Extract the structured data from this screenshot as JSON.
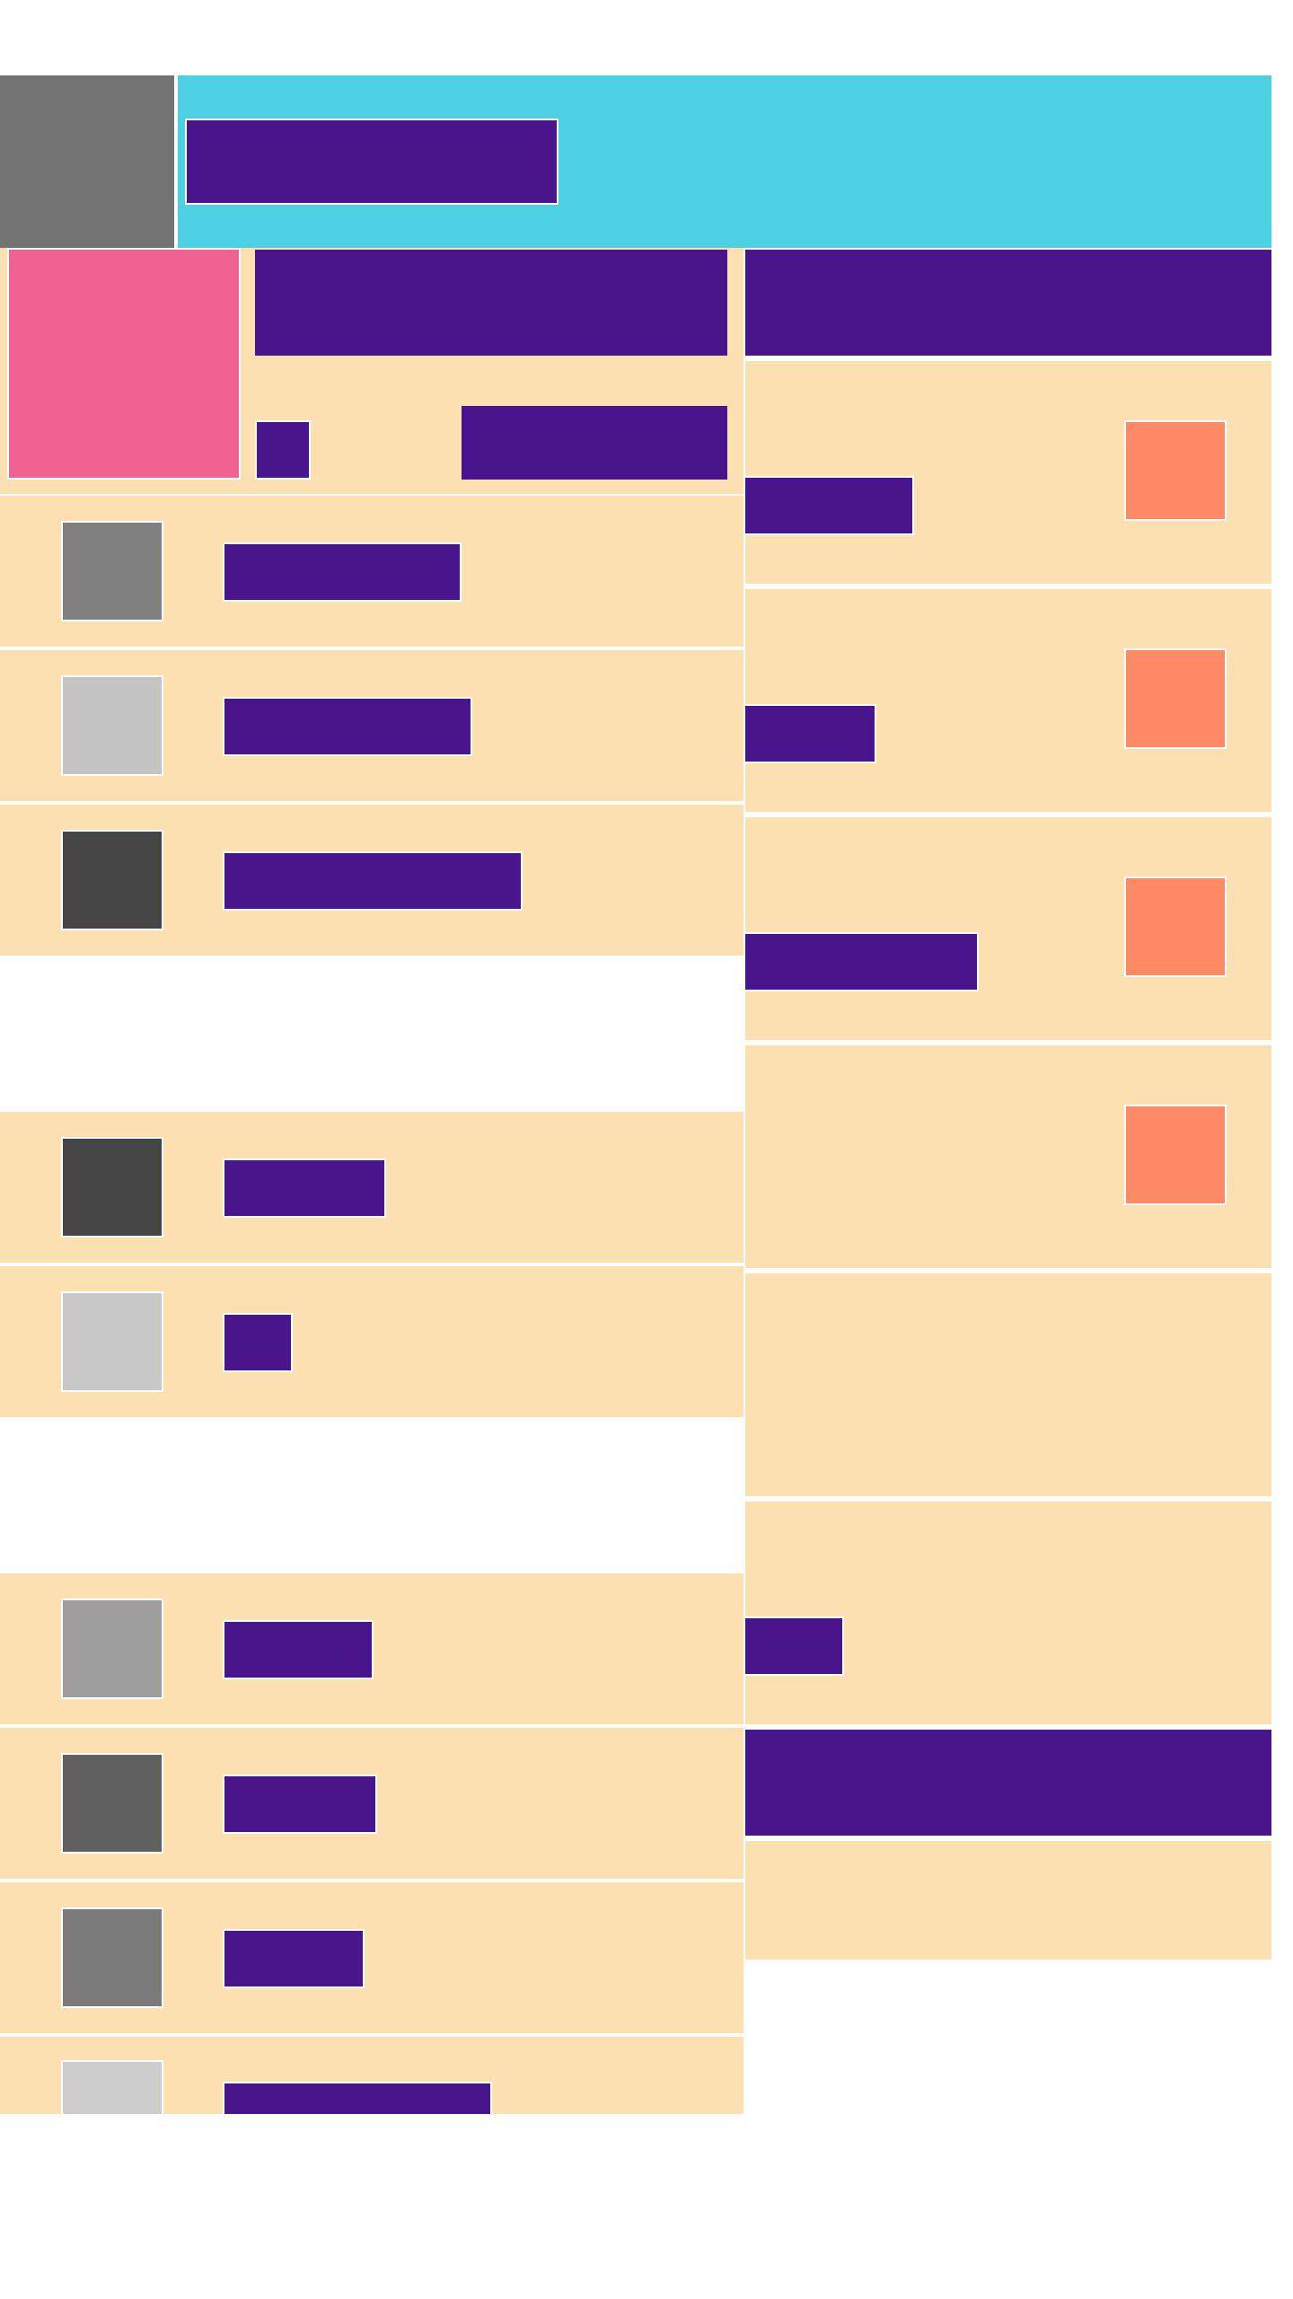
{
  "header": {
    "title": ""
  },
  "hero": {
    "title": "",
    "tag": "",
    "action_label": ""
  },
  "left_list": {
    "groups": [
      {
        "items": [
          {
            "label": "",
            "thumb_color": "#808080"
          },
          {
            "label": "",
            "thumb_color": "#c4c4c4"
          },
          {
            "label": "",
            "thumb_color": "#454545"
          }
        ]
      },
      {
        "items": [
          {
            "label": "",
            "thumb_color": "#454545"
          },
          {
            "label": "",
            "thumb_color": "#c8c8c8"
          }
        ]
      },
      {
        "items": [
          {
            "label": "",
            "thumb_color": "#9e9e9e"
          },
          {
            "label": "",
            "thumb_color": "#606060"
          },
          {
            "label": "",
            "thumb_color": "#7a7a7a"
          },
          {
            "label": "",
            "thumb_color": "#cccccc"
          }
        ]
      }
    ]
  },
  "right_panel": {
    "title": "",
    "cards": [
      {
        "label": "",
        "has_icon": true
      },
      {
        "label": "",
        "has_icon": true
      },
      {
        "label": "",
        "has_icon": true
      },
      {
        "label": "",
        "has_icon": true
      },
      {
        "label": "",
        "has_icon": false
      },
      {
        "label": "",
        "has_icon": false
      }
    ],
    "footer_title": ""
  },
  "colors": {
    "header_bg": "#4dd0e1",
    "accent": "#4a148c",
    "card_bg": "#fde0b2",
    "pink": "#f06292",
    "orange": "#ff8a65"
  }
}
